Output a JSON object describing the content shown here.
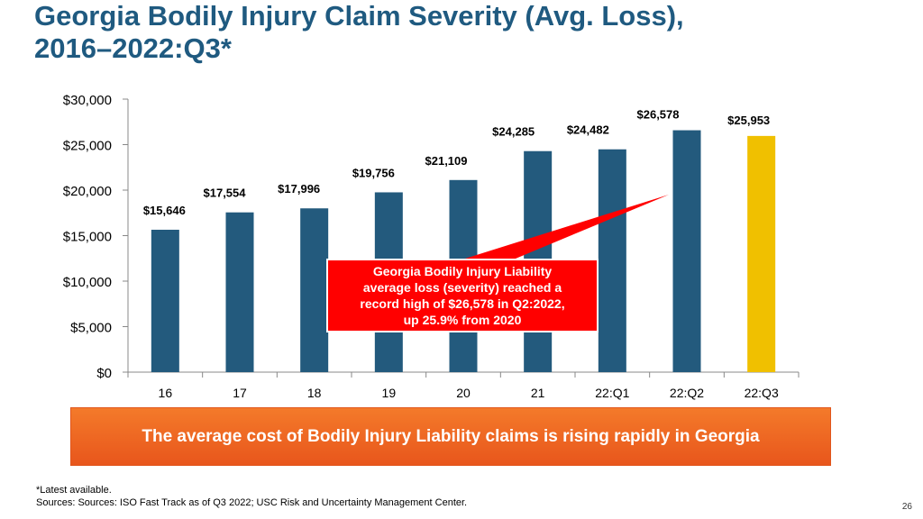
{
  "slide": {
    "title_line1": "Georgia Bodily Injury Claim Severity (Avg. Loss),",
    "title_line2": "2016–2022:Q3*",
    "banner_text": "The average cost of Bodily Injury Liability claims is rising rapidly in Georgia",
    "footnote_line1": "*Latest available.",
    "footnote_line2": "Sources: Sources: ISO Fast Track as of Q3 2022; USC Risk and Uncertainty Management Center.",
    "page_number": "26"
  },
  "callout": {
    "lines": [
      "Georgia Bodily Injury Liability",
      "average loss (severity) reached a",
      "record high of $26,578 in Q2:2022,",
      "up 25.9% from 2020"
    ],
    "color": "#ff0000"
  },
  "chart_data": {
    "type": "bar",
    "categories": [
      "16",
      "17",
      "18",
      "19",
      "20",
      "21",
      "22:Q1",
      "22:Q2",
      "22:Q3"
    ],
    "values": [
      15646,
      17554,
      17996,
      19756,
      21109,
      24285,
      24482,
      26578,
      25953
    ],
    "data_labels": [
      "$15,646",
      "$17,554",
      "$17,996",
      "$19,756",
      "$21,109",
      "$24,285",
      "$24,482",
      "$26,578",
      "$25,953"
    ],
    "y_ticks": [
      0,
      5000,
      10000,
      15000,
      20000,
      25000,
      30000
    ],
    "y_tick_labels": [
      "$0",
      "$5,000",
      "$10,000",
      "$15,000",
      "$20,000",
      "$25,000",
      "$30,000"
    ],
    "ylim": [
      0,
      30000
    ],
    "bar_color": "#235a7d",
    "highlight_color": "#f0c000",
    "highlight_index": 8,
    "grid": false,
    "legend": "none"
  }
}
